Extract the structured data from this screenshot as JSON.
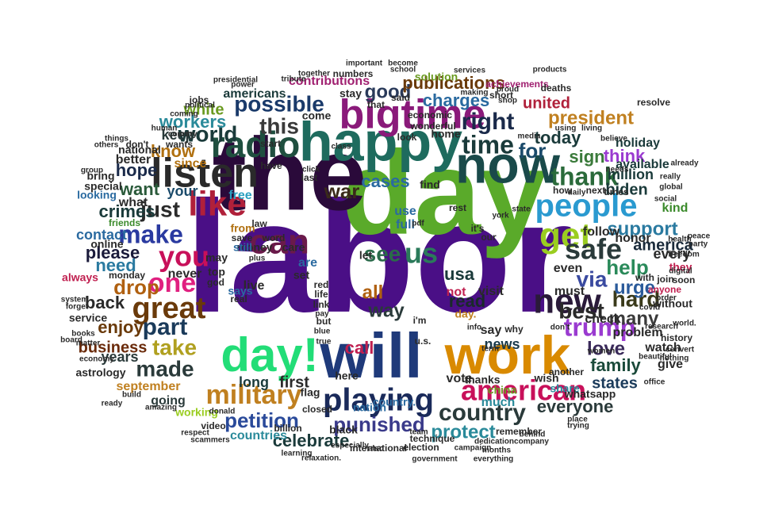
{
  "words": [
    {
      "text": "labor",
      "color": "#4a0f86"
    },
    {
      "text": "day",
      "color": "#5aaa2a"
    },
    {
      "text": "the",
      "color": "#2a0a3a"
    },
    {
      "text": "will",
      "color": "#1f3a7a"
    },
    {
      "text": "happy",
      "color": "#1e6b5e"
    },
    {
      "text": "now",
      "color": "#1a4a4a"
    },
    {
      "text": "work",
      "color": "#d98a00"
    },
    {
      "text": "day!",
      "color": "#22dd77"
    },
    {
      "text": "bigtime",
      "color": "#8a1a7a"
    },
    {
      "text": "listen",
      "color": "#2a2a2a"
    },
    {
      "text": "radio",
      "color": "#1f4f3f"
    },
    {
      "text": "like",
      "color": "#b0203a"
    },
    {
      "text": "can",
      "color": "#6a1a4a"
    },
    {
      "text": "people",
      "color": "#2a9ad0"
    },
    {
      "text": "get",
      "color": "#9acd20"
    },
    {
      "text": "new",
      "color": "#2a1a3a"
    },
    {
      "text": "american",
      "color": "#c8105a"
    },
    {
      "text": "you",
      "color": "#c8105a"
    },
    {
      "text": "one",
      "color": "#e02080"
    },
    {
      "text": "great",
      "color": "#6a3a0a"
    },
    {
      "text": "make",
      "color": "#2a3aa0"
    },
    {
      "text": "us",
      "color": "#2a7a5a"
    },
    {
      "text": "safe",
      "color": "#2a3a3a"
    },
    {
      "text": "playing",
      "color": "#1a2a5a"
    },
    {
      "text": "military",
      "color": "#c08020"
    },
    {
      "text": "trump",
      "color": "#9a3ad0"
    },
    {
      "text": "country",
      "color": "#2a3a3a"
    },
    {
      "text": "thank",
      "color": "#2a6a3a"
    },
    {
      "text": "time",
      "color": "#1a3a3a"
    },
    {
      "text": "world",
      "color": "#1a3a3a"
    },
    {
      "text": "right",
      "color": "#1a2a4a"
    },
    {
      "text": "possible",
      "color": "#1a3a6a"
    },
    {
      "text": "this",
      "color": "#3a3a3a"
    },
    {
      "text": "just",
      "color": "#2a2a2a"
    },
    {
      "text": "part",
      "color": "#1a3a5a"
    },
    {
      "text": "take",
      "color": "#b0a020"
    },
    {
      "text": "made",
      "color": "#2a3a3a"
    },
    {
      "text": "via",
      "color": "#3a4aa0"
    },
    {
      "text": "help",
      "color": "#2a8a5a"
    },
    {
      "text": "best",
      "color": "#2a2a2a"
    },
    {
      "text": "hard",
      "color": "#3a3a1a"
    },
    {
      "text": "urge",
      "color": "#2a5a9a"
    },
    {
      "text": "many",
      "color": "#3a3a3a"
    },
    {
      "text": "love",
      "color": "#3a2a5a"
    },
    {
      "text": "family",
      "color": "#1a4a3a"
    },
    {
      "text": "support",
      "color": "#2a7aa0"
    },
    {
      "text": "petition",
      "color": "#2a4a9a"
    },
    {
      "text": "celebrate",
      "color": "#1a3a3a"
    },
    {
      "text": "punished",
      "color": "#3a3a8a"
    },
    {
      "text": "protect",
      "color": "#2a8a9a"
    },
    {
      "text": "everyone",
      "color": "#2a3a3a"
    },
    {
      "text": "drop",
      "color": "#b06010"
    },
    {
      "text": "need",
      "color": "#2a7aa0"
    },
    {
      "text": "please",
      "color": "#1a1a3a"
    },
    {
      "text": "enjoy",
      "color": "#6a3a0a"
    },
    {
      "text": "back",
      "color": "#2a2a2a"
    },
    {
      "text": "want",
      "color": "#2a5a3a"
    },
    {
      "text": "hope",
      "color": "#1a2a4a"
    },
    {
      "text": "crimes",
      "color": "#1a3a3a"
    },
    {
      "text": "contact",
      "color": "#2a6aa0"
    },
    {
      "text": "know",
      "color": "#b07010"
    },
    {
      "text": "war",
      "color": "#3a2a1a"
    },
    {
      "text": "see",
      "color": "#2a6a4a"
    },
    {
      "text": "good",
      "color": "#2a3a5a"
    },
    {
      "text": "charges",
      "color": "#2a6aa0"
    },
    {
      "text": "publications",
      "color": "#6a3a0a"
    },
    {
      "text": "president",
      "color": "#c08020"
    },
    {
      "text": "sign",
      "color": "#3a7a3a"
    },
    {
      "text": "for",
      "color": "#1a4a6a"
    },
    {
      "text": "today",
      "color": "#1a3a3a"
    },
    {
      "text": "united",
      "color": "#b0203a"
    },
    {
      "text": "workers",
      "color": "#2a8a9a"
    },
    {
      "text": "cases",
      "color": "#2a6aa0"
    },
    {
      "text": "call",
      "color": "#c02050"
    },
    {
      "text": "all",
      "color": "#b06010"
    },
    {
      "text": "way",
      "color": "#2a3a3a"
    },
    {
      "text": "usa",
      "color": "#1a3a3a"
    },
    {
      "text": "read",
      "color": "#1a2a2a"
    },
    {
      "text": "business",
      "color": "#6a2a0a"
    },
    {
      "text": "states",
      "color": "#1a3a5a"
    },
    {
      "text": "biden",
      "color": "#1a3a3a"
    },
    {
      "text": "america",
      "color": "#1a2a3a"
    },
    {
      "text": "every",
      "color": "#2a2a2a"
    },
    {
      "text": "million",
      "color": "#1a3a3a"
    },
    {
      "text": "years",
      "color": "#2a3a3a"
    },
    {
      "text": "think",
      "color": "#9a3ad0"
    },
    {
      "text": "white",
      "color": "#6a9a20"
    },
    {
      "text": "keep",
      "color": "#2a3a3a"
    },
    {
      "text": "first",
      "color": "#2a2a2a"
    },
    {
      "text": "long",
      "color": "#1a3a3a"
    },
    {
      "text": "news",
      "color": "#1a3a4a"
    },
    {
      "text": "going",
      "color": "#2a3a3a"
    },
    {
      "text": "holiday",
      "color": "#1a3a3a"
    },
    {
      "text": "available",
      "color": "#1a3a3a"
    },
    {
      "text": "kind",
      "color": "#3a8a2a"
    },
    {
      "text": "honor",
      "color": "#2a2a2a"
    },
    {
      "text": "check",
      "color": "#2a2a2a"
    },
    {
      "text": "follow",
      "color": "#2a2a2a"
    },
    {
      "text": "problem",
      "color": "#2a2a2a"
    },
    {
      "text": "watch",
      "color": "#2a2a2a"
    },
    {
      "text": "give",
      "color": "#2a2a2a"
    },
    {
      "text": "even",
      "color": "#2a2a2a"
    },
    {
      "text": "must",
      "color": "#2a2a2a"
    },
    {
      "text": "visit",
      "color": "#2a2a2a"
    },
    {
      "text": "say",
      "color": "#2a2a2a"
    },
    {
      "text": "vote",
      "color": "#2a2a2a"
    },
    {
      "text": "free",
      "color": "#2aa0c0"
    },
    {
      "text": "your",
      "color": "#1a4a6a"
    },
    {
      "text": "what",
      "color": "#2a2a2a"
    },
    {
      "text": "never",
      "color": "#2a2a2a"
    },
    {
      "text": "since",
      "color": "#b07010"
    },
    {
      "text": "better",
      "color": "#2a2a2a"
    },
    {
      "text": "stay",
      "color": "#2a2a2a"
    },
    {
      "text": "come",
      "color": "#2a2a2a"
    },
    {
      "text": "americans",
      "color": "#1a3a3a"
    },
    {
      "text": "contributions",
      "color": "#a02070"
    },
    {
      "text": "september",
      "color": "#c08020"
    },
    {
      "text": "working",
      "color": "#9acd20"
    },
    {
      "text": "countries",
      "color": "#2a8a9a"
    },
    {
      "text": "nation",
      "color": "#2a6aa0"
    },
    {
      "text": "thanks",
      "color": "#2a2a2a"
    },
    {
      "text": "china",
      "color": "#6a9a20"
    },
    {
      "text": "much",
      "color": "#2a8a9a"
    },
    {
      "text": "wish",
      "color": "#2a2a2a"
    },
    {
      "text": "share",
      "color": "#2a8a9a"
    },
    {
      "text": "whatsapp",
      "color": "#2a2a2a"
    },
    {
      "text": "black",
      "color": "#2a2a2a"
    },
    {
      "text": "flag",
      "color": "#2a2a2a"
    },
    {
      "text": "here",
      "color": "#2a2a2a"
    },
    {
      "text": "country.",
      "color": "#2a6aa0"
    },
    {
      "text": "day.",
      "color": "#c08020"
    },
    {
      "text": "not",
      "color": "#c02050"
    },
    {
      "text": "let",
      "color": "#2a2a2a"
    },
    {
      "text": "find",
      "color": "#2a2a2a"
    },
    {
      "text": "full",
      "color": "#2a6aa0"
    },
    {
      "text": "use",
      "color": "#2a6aa0"
    },
    {
      "text": "home",
      "color": "#2a2a2a"
    },
    {
      "text": "solution",
      "color": "#6a9a20"
    },
    {
      "text": "said",
      "color": "#2a2a2a"
    },
    {
      "text": "jobs",
      "color": "#2a2a2a"
    },
    {
      "text": "national",
      "color": "#2a2a2a"
    },
    {
      "text": "wants",
      "color": "#2a2a2a"
    },
    {
      "text": "online",
      "color": "#2a2a2a"
    },
    {
      "text": "friends",
      "color": "#3a8a2a"
    },
    {
      "text": "bring",
      "color": "#2a2a2a"
    },
    {
      "text": "special",
      "color": "#2a2a2a"
    },
    {
      "text": "looking",
      "color": "#2a6aa0"
    },
    {
      "text": "always",
      "color": "#c02050"
    },
    {
      "text": "monday",
      "color": "#2a2a2a"
    },
    {
      "text": "service",
      "color": "#2a2a2a"
    },
    {
      "text": "astrology",
      "color": "#2a2a2a"
    },
    {
      "text": "money",
      "color": "#2a2a2a"
    },
    {
      "text": "care",
      "color": "#2a2a2a"
    },
    {
      "text": "live",
      "color": "#2a2a2a"
    },
    {
      "text": "says",
      "color": "#2a6aa0"
    },
    {
      "text": "still",
      "color": "#2a6aa0"
    },
    {
      "text": "top",
      "color": "#2a2a2a"
    },
    {
      "text": "god",
      "color": "#2a2a2a"
    },
    {
      "text": "may",
      "color": "#2a2a2a"
    },
    {
      "text": "are",
      "color": "#2a6aa0"
    },
    {
      "text": "set",
      "color": "#2a2a2a"
    },
    {
      "text": "from",
      "color": "#b07010"
    },
    {
      "text": "save",
      "color": "#2a2a2a"
    },
    {
      "text": "word",
      "color": "#2a2a2a"
    },
    {
      "text": "law",
      "color": "#2a2a2a"
    },
    {
      "text": "last",
      "color": "#2a2a2a"
    },
    {
      "text": "have",
      "color": "#2a2a2a"
    },
    {
      "text": "start",
      "color": "#2a2a2a"
    },
    {
      "text": "economic",
      "color": "#2a2a2a"
    },
    {
      "text": "wonderful",
      "color": "#2a2a2a"
    },
    {
      "text": "numbers",
      "color": "#2a2a2a"
    },
    {
      "text": "together",
      "color": "#2a2a2a"
    },
    {
      "text": "achievements",
      "color": "#a02070"
    },
    {
      "text": "deaths",
      "color": "#2a2a2a"
    },
    {
      "text": "using",
      "color": "#2a2a2a"
    },
    {
      "text": "living",
      "color": "#2a2a2a"
    },
    {
      "text": "next",
      "color": "#2a2a2a"
    },
    {
      "text": "times",
      "color": "#2a2a2a"
    },
    {
      "text": "how",
      "color": "#2a2a2a"
    },
    {
      "text": "daily",
      "color": "#2a2a2a"
    },
    {
      "text": "world.",
      "color": "#2a2a2a"
    },
    {
      "text": "with",
      "color": "#2a2a2a"
    },
    {
      "text": "they",
      "color": "#c02050"
    },
    {
      "text": "join",
      "color": "#2a2a2a"
    },
    {
      "text": "soon",
      "color": "#2a2a2a"
    },
    {
      "text": "anyone",
      "color": "#c02050"
    },
    {
      "text": "without",
      "color": "#2a2a2a"
    },
    {
      "text": "history",
      "color": "#2a2a2a"
    },
    {
      "text": "beautiful",
      "color": "#2a2a2a"
    },
    {
      "text": "office",
      "color": "#2a2a2a"
    },
    {
      "text": "short",
      "color": "#2a2a2a"
    },
    {
      "text": "proud",
      "color": "#2a2a2a"
    },
    {
      "text": "believe",
      "color": "#2a2a2a"
    },
    {
      "text": "needs",
      "color": "#2a2a2a"
    },
    {
      "text": "order",
      "color": "#2a2a2a"
    },
    {
      "text": "digital",
      "color": "#2a2a2a"
    },
    {
      "text": "resolve",
      "color": "#2a2a2a"
    },
    {
      "text": "respect",
      "color": "#2a2a2a"
    },
    {
      "text": "remember",
      "color": "#2a2a2a"
    },
    {
      "text": "another",
      "color": "#2a2a2a"
    },
    {
      "text": "billion",
      "color": "#2a2a2a"
    },
    {
      "text": "video",
      "color": "#2a2a2a"
    },
    {
      "text": "donald",
      "color": "#2a2a2a"
    },
    {
      "text": "international",
      "color": "#2a2a2a"
    },
    {
      "text": "election",
      "color": "#2a2a2a"
    },
    {
      "text": "especially",
      "color": "#2a2a2a"
    },
    {
      "text": "technique",
      "color": "#2a2a2a"
    },
    {
      "text": "team",
      "color": "#2a2a2a"
    },
    {
      "text": "closed",
      "color": "#2a2a2a"
    },
    {
      "text": "covid",
      "color": "#2a2a2a"
    },
    {
      "text": "school",
      "color": "#2a2a2a"
    },
    {
      "text": "making",
      "color": "#2a2a2a"
    },
    {
      "text": "services",
      "color": "#2a2a2a"
    },
    {
      "text": "important",
      "color": "#2a2a2a"
    },
    {
      "text": "power",
      "color": "#2a2a2a"
    },
    {
      "text": "presidential",
      "color": "#2a2a2a"
    },
    {
      "text": "tribute",
      "color": "#2a2a2a"
    },
    {
      "text": "political",
      "color": "#2a2a2a"
    },
    {
      "text": "coming",
      "color": "#2a2a2a"
    },
    {
      "text": "human",
      "color": "#2a2a2a"
    },
    {
      "text": "things",
      "color": "#2a2a2a"
    },
    {
      "text": "others",
      "color": "#2a2a2a"
    },
    {
      "text": "group",
      "color": "#2a2a2a"
    },
    {
      "text": "board",
      "color": "#2a2a2a"
    },
    {
      "text": "system",
      "color": "#2a2a2a"
    },
    {
      "text": "forget",
      "color": "#2a2a2a"
    },
    {
      "text": "books",
      "color": "#2a2a2a"
    },
    {
      "text": "matter",
      "color": "#2a2a2a"
    },
    {
      "text": "economy",
      "color": "#2a2a2a"
    },
    {
      "text": "ready",
      "color": "#2a2a2a"
    },
    {
      "text": "build",
      "color": "#2a2a2a"
    },
    {
      "text": "amazing",
      "color": "#2a2a2a"
    },
    {
      "text": "scammers",
      "color": "#2a2a2a"
    },
    {
      "text": "dedication",
      "color": "#2a2a2a"
    },
    {
      "text": "company",
      "color": "#2a2a2a"
    },
    {
      "text": "campaign",
      "color": "#2a2a2a"
    },
    {
      "text": "months",
      "color": "#2a2a2a"
    },
    {
      "text": "behind",
      "color": "#2a2a2a"
    },
    {
      "text": "trying",
      "color": "#2a2a2a"
    },
    {
      "text": "place",
      "color": "#2a2a2a"
    },
    {
      "text": "research",
      "color": "#2a2a2a"
    },
    {
      "text": "peace",
      "color": "#2a2a2a"
    },
    {
      "text": "party",
      "color": "#2a2a2a"
    },
    {
      "text": "global",
      "color": "#2a2a2a"
    },
    {
      "text": "health",
      "color": "#2a2a2a"
    },
    {
      "text": "freedom",
      "color": "#2a2a2a"
    },
    {
      "text": "really",
      "color": "#2a2a2a"
    },
    {
      "text": "already",
      "color": "#2a2a2a"
    },
    {
      "text": "social",
      "color": "#2a2a2a"
    },
    {
      "text": "convert",
      "color": "#2a2a2a"
    },
    {
      "text": "women",
      "color": "#2a2a2a"
    },
    {
      "text": "nothing",
      "color": "#2a2a2a"
    },
    {
      "text": "real",
      "color": "#2a2a2a"
    },
    {
      "text": "plus",
      "color": "#2a2a2a"
    },
    {
      "text": "red",
      "color": "#2a2a2a"
    },
    {
      "text": "life",
      "color": "#2a2a2a"
    },
    {
      "text": "link",
      "color": "#2a2a2a"
    },
    {
      "text": "pay",
      "color": "#2a2a2a"
    },
    {
      "text": "but",
      "color": "#2a2a2a"
    },
    {
      "text": "blue",
      "color": "#2a2a2a"
    },
    {
      "text": "true",
      "color": "#2a2a2a"
    },
    {
      "text": "i'm",
      "color": "#2a2a2a"
    },
    {
      "text": "u.s.",
      "color": "#2a2a2a"
    },
    {
      "text": "why",
      "color": "#2a2a2a"
    },
    {
      "text": "term",
      "color": "#2a2a2a"
    },
    {
      "text": "info",
      "color": "#2a2a2a"
    },
    {
      "text": "our",
      "color": "#2a2a2a"
    },
    {
      "text": "it's",
      "color": "#2a2a2a"
    },
    {
      "text": "rest",
      "color": "#2a2a2a"
    },
    {
      "text": "york",
      "color": "#2a2a2a"
    },
    {
      "text": "state",
      "color": "#2a2a2a"
    },
    {
      "text": "pdf",
      "color": "#2a2a2a"
    },
    {
      "text": "click",
      "color": "#2a2a2a"
    },
    {
      "text": "look",
      "color": "#2a2a2a"
    },
    {
      "text": "class",
      "color": "#2a2a2a"
    },
    {
      "text": "that",
      "color": "#2a2a2a"
    },
    {
      "text": "also",
      "color": "#2a2a2a"
    },
    {
      "text": "shop",
      "color": "#2a2a2a"
    },
    {
      "text": "media",
      "color": "#2a2a2a"
    },
    {
      "text": "products",
      "color": "#2a2a2a"
    },
    {
      "text": "relaxation.",
      "color": "#2a2a2a"
    },
    {
      "text": "government",
      "color": "#2a2a2a"
    },
    {
      "text": "everything",
      "color": "#2a2a2a"
    },
    {
      "text": "learning",
      "color": "#2a2a2a"
    },
    {
      "text": "don't",
      "color": "#2a2a2a"
    },
    {
      "text": "don’t",
      "color": "#2a2a2a"
    },
    {
      "text": "become",
      "color": "#2a2a2a"
    },
    {
      "text": "country",
      "color": "#2a2a2a"
    }
  ]
}
